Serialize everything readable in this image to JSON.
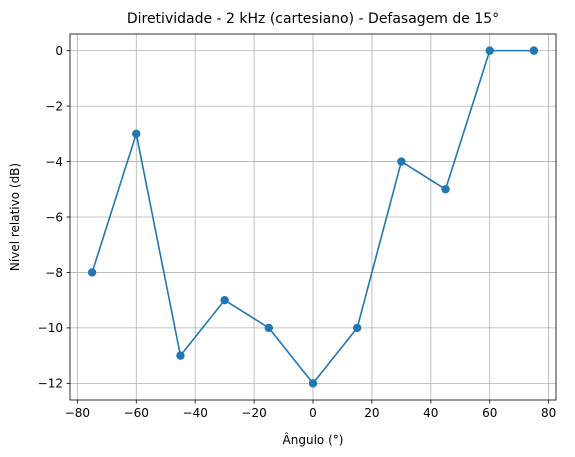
{
  "chart_data": {
    "type": "line",
    "title": "Diretividade - 2 kHz (cartesiano) - Defasagem de 15°",
    "xlabel": "Ângulo (°)",
    "ylabel": "Nível relativo (dB)",
    "xlim": [
      -82.5,
      82.5
    ],
    "ylim": [
      -12.6,
      0.6
    ],
    "xticks": [
      -80,
      -60,
      -40,
      -20,
      0,
      20,
      40,
      60,
      80
    ],
    "xtick_labels": [
      "−80",
      "−60",
      "−40",
      "−20",
      "0",
      "20",
      "40",
      "60",
      "80"
    ],
    "yticks": [
      -12,
      -10,
      -8,
      -6,
      -4,
      -2,
      0
    ],
    "ytick_labels": [
      "−12",
      "−10",
      "−8",
      "−6",
      "−4",
      "−2",
      "0"
    ],
    "grid": true,
    "color": "#1f77b4",
    "marker": "circle",
    "series": [
      {
        "x": [
          -75,
          -60,
          -45,
          -30,
          -15,
          0,
          15,
          30,
          45,
          60,
          75
        ],
        "y": [
          -8,
          -3,
          -11,
          -9,
          -10,
          -12,
          -10,
          -4,
          -5,
          0,
          0
        ]
      }
    ]
  }
}
